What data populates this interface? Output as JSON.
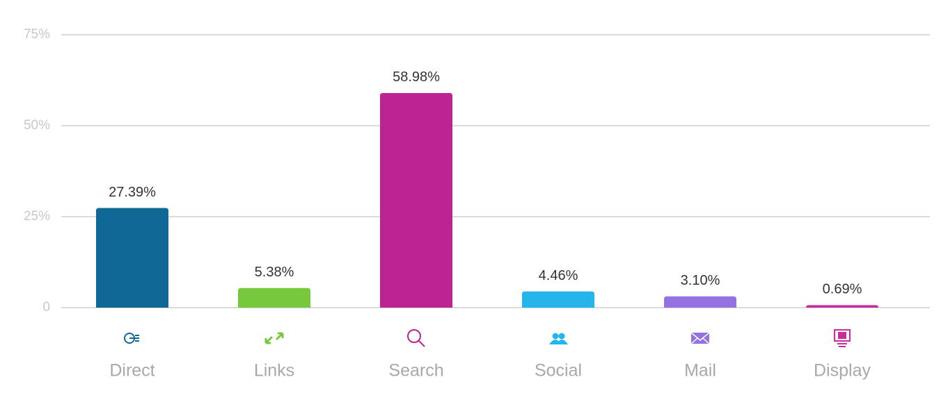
{
  "chart_data": {
    "type": "bar",
    "categories": [
      "Direct",
      "Links",
      "Search",
      "Social",
      "Mail",
      "Display"
    ],
    "values": [
      27.39,
      5.38,
      58.98,
      4.46,
      3.1,
      0.69
    ],
    "value_labels": [
      "27.39%",
      "5.38%",
      "58.98%",
      "4.46%",
      "3.10%",
      "0.69%"
    ],
    "colors": [
      "#0f6896",
      "#76c83d",
      "#bc2393",
      "#25b5ea",
      "#9473e0",
      "#c82d9b"
    ],
    "ylim": [
      0,
      75
    ],
    "yticks": [
      0,
      {
        "value": 25,
        "label": "25%"
      },
      {
        "value": 50,
        "label": "50%"
      },
      {
        "value": 75,
        "label": "75%"
      }
    ],
    "grid": true
  }
}
